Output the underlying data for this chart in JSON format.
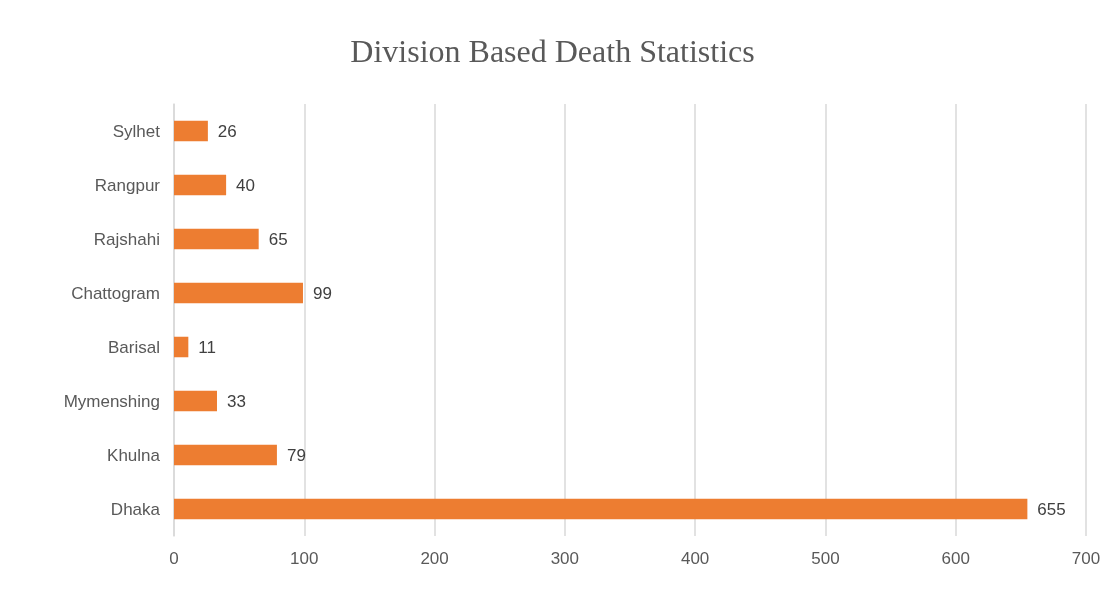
{
  "chart_data": {
    "type": "bar",
    "orientation": "horizontal",
    "title": "Division Based Death Statistics",
    "categories": [
      "Sylhet",
      "Rangpur",
      "Rajshahi",
      "Chattogram",
      "Barisal",
      "Mymenshing",
      "Khulna",
      "Dhaka"
    ],
    "values": [
      26,
      40,
      65,
      99,
      11,
      33,
      79,
      655
    ],
    "color": "#ed7d31",
    "xlim": [
      0,
      700
    ],
    "xticks": [
      0,
      100,
      200,
      300,
      400,
      500,
      600,
      700
    ],
    "grid": "x",
    "data_labels": true
  }
}
